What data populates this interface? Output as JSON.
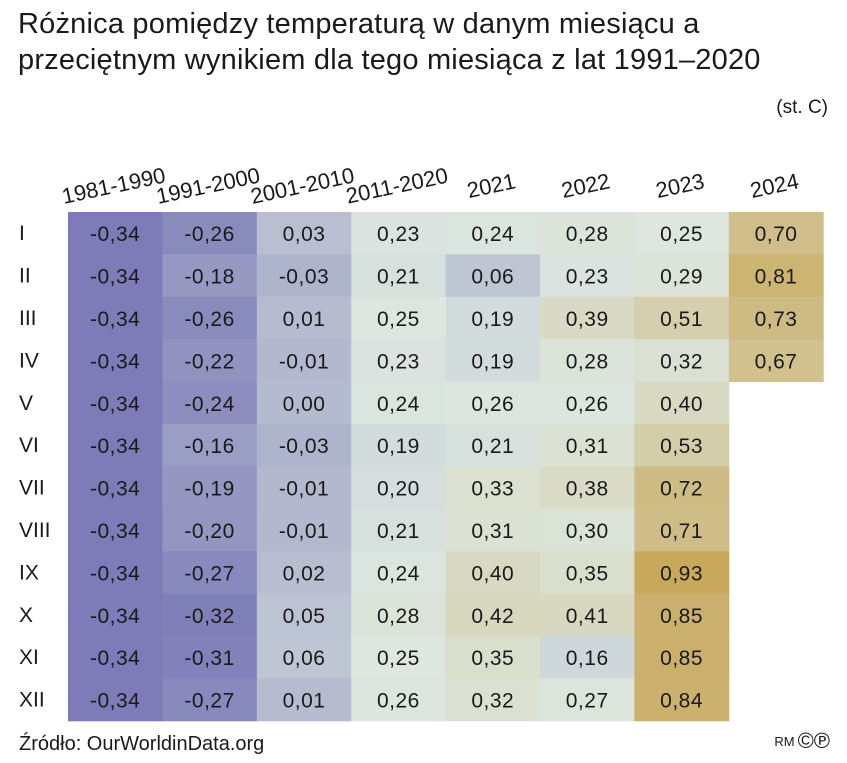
{
  "title": "Różnica pomiędzy temperaturą w danym miesiącu a przeciętnym wynikiem dla tego miesiąca z lat 1991–2020",
  "unit": "(st. C)",
  "source": "Źródło: OurWorldinData.org",
  "credit_initials": "RM",
  "credit_symbols": "©℗",
  "chart_data": {
    "type": "heatmap",
    "columns": [
      "1981-1990",
      "1991-2000",
      "2001-2010",
      "2011-2020",
      "2021",
      "2022",
      "2023",
      "2024"
    ],
    "rows": [
      "I",
      "II",
      "III",
      "IV",
      "V",
      "VI",
      "VII",
      "VIII",
      "IX",
      "X",
      "XI",
      "XII"
    ],
    "values": [
      [
        -0.34,
        -0.26,
        0.03,
        0.23,
        0.24,
        0.28,
        0.25,
        0.7
      ],
      [
        -0.34,
        -0.18,
        -0.03,
        0.21,
        0.06,
        0.23,
        0.29,
        0.81
      ],
      [
        -0.34,
        -0.26,
        0.01,
        0.25,
        0.19,
        0.39,
        0.51,
        0.73
      ],
      [
        -0.34,
        -0.22,
        -0.01,
        0.23,
        0.19,
        0.28,
        0.32,
        0.67
      ],
      [
        -0.34,
        -0.24,
        0.0,
        0.24,
        0.26,
        0.26,
        0.4,
        null
      ],
      [
        -0.34,
        -0.16,
        -0.03,
        0.19,
        0.21,
        0.31,
        0.53,
        null
      ],
      [
        -0.34,
        -0.19,
        -0.01,
        0.2,
        0.33,
        0.38,
        0.72,
        null
      ],
      [
        -0.34,
        -0.2,
        -0.01,
        0.21,
        0.31,
        0.3,
        0.71,
        null
      ],
      [
        -0.34,
        -0.27,
        0.02,
        0.24,
        0.4,
        0.35,
        0.93,
        null
      ],
      [
        -0.34,
        -0.32,
        0.05,
        0.28,
        0.42,
        0.41,
        0.85,
        null
      ],
      [
        -0.34,
        -0.31,
        0.06,
        0.25,
        0.35,
        0.16,
        0.85,
        null
      ],
      [
        -0.34,
        -0.27,
        0.01,
        0.26,
        0.32,
        0.27,
        0.84,
        null
      ]
    ],
    "color_scale": {
      "min": -0.34,
      "mid": 0.25,
      "max": 0.93,
      "min_color": "#7d7cb8",
      "mid_color": "#dde7e0",
      "max_color": "#c8a95c"
    }
  }
}
